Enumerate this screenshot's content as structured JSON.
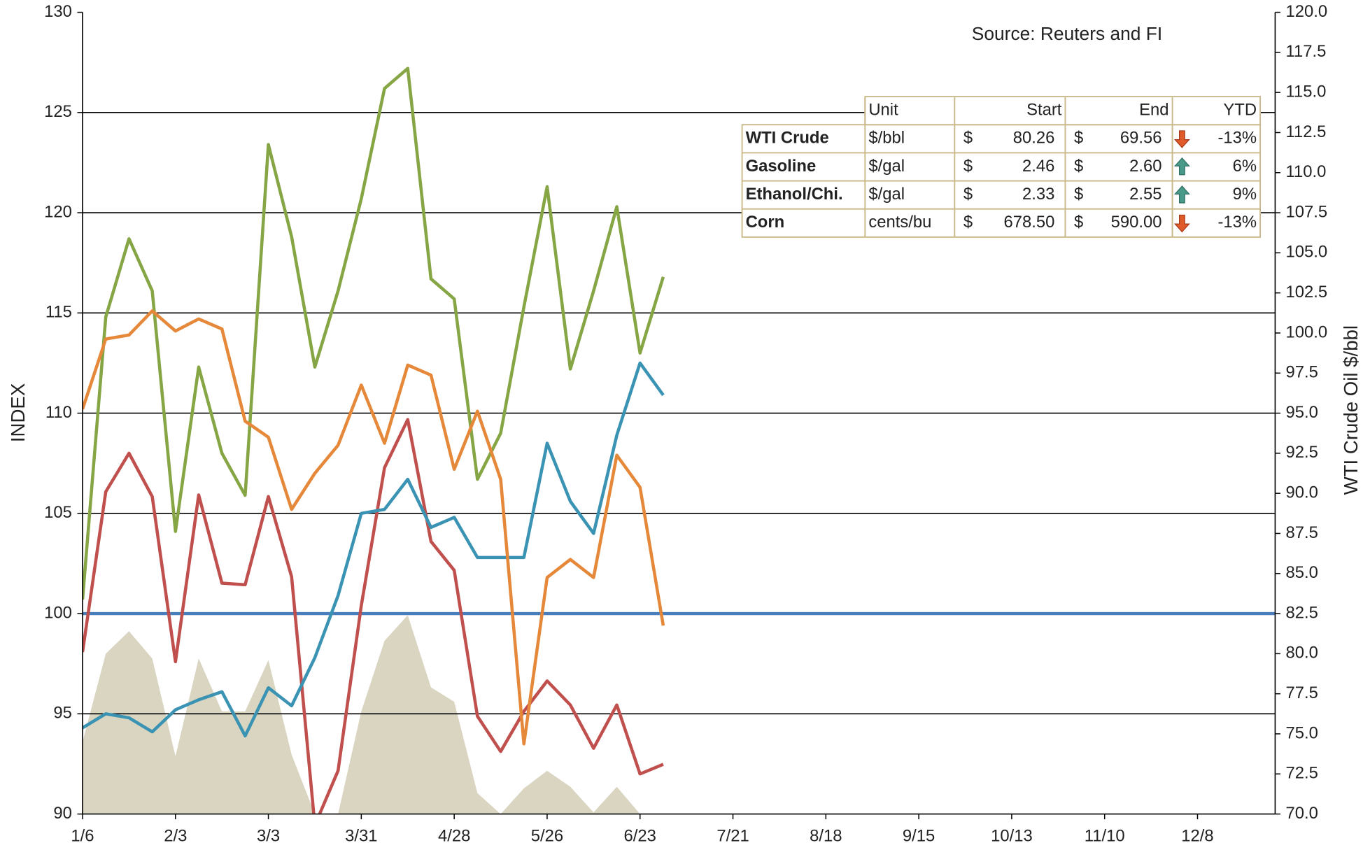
{
  "chart_data": {
    "type": "line",
    "annotation": "Source: Reuters and FI",
    "y_label": "INDEX",
    "y2_label": "WTI Crude Oil $/bbl",
    "categories": [
      "1/6",
      null,
      null,
      null,
      "2/3",
      null,
      null,
      null,
      "3/3",
      null,
      null,
      null,
      "3/31",
      null,
      null,
      null,
      "4/28",
      null,
      null,
      null,
      "5/26",
      null,
      null,
      null,
      "6/23",
      null,
      null,
      null,
      "7/21",
      null,
      null,
      null,
      "8/18",
      null,
      null,
      null,
      "9/15",
      null,
      null,
      null,
      "10/13",
      null,
      null,
      null,
      "11/10",
      null,
      null,
      null,
      "12/8",
      null,
      null,
      null
    ],
    "ylim": [
      90,
      130
    ],
    "yticks": [
      90,
      95,
      100,
      105,
      110,
      115,
      120,
      125,
      130
    ],
    "y2lim": [
      70,
      120
    ],
    "y2ticks": [
      {
        "value": 70,
        "label": "70.0"
      },
      72.5,
      {
        "value": 75,
        "label": "75.0"
      },
      77.5,
      {
        "value": 80,
        "label": "80.0"
      },
      82.5,
      {
        "value": 85,
        "label": "85.0"
      },
      87.5,
      {
        "value": 90,
        "label": "90.0"
      },
      92.5,
      {
        "value": 95,
        "label": "95.0"
      },
      97.5,
      {
        "value": 100,
        "label": "100.0"
      },
      102.5,
      {
        "value": 105,
        "label": "105.0"
      },
      107.5,
      {
        "value": 110,
        "label": "110.0"
      },
      112.5,
      {
        "value": 115,
        "label": "115.0"
      },
      117.5,
      {
        "value": 120,
        "label": "120.0"
      }
    ],
    "grid": true,
    "reference_line": {
      "value": 100,
      "color": "#4a7ebb"
    },
    "series": [
      {
        "name": "WTI Crude",
        "color": "#c0504d",
        "axis": "y2",
        "values": [
          80.1,
          90.1,
          92.5,
          89.8,
          79.5,
          89.9,
          84.4,
          84.3,
          89.8,
          84.8,
          69.3,
          72.7,
          83.0,
          91.6,
          94.6,
          87.0,
          85.2,
          76.1,
          73.9,
          76.4,
          78.3,
          76.8,
          74.1,
          76.8,
          72.5,
          73.1,
          null,
          null,
          null,
          null,
          null,
          null,
          null,
          null,
          null,
          null,
          null,
          null,
          null,
          null,
          null,
          null,
          null,
          null,
          null,
          null,
          null,
          null,
          null,
          null,
          null,
          null
        ]
      },
      {
        "name": "Gasoline",
        "color": "#86a544",
        "values": [
          100.7,
          114.8,
          118.7,
          116.1,
          104.1,
          112.3,
          108.0,
          105.9,
          123.4,
          118.8,
          112.3,
          116.1,
          120.7,
          126.2,
          127.2,
          116.7,
          115.7,
          106.7,
          109.0,
          115.3,
          121.3,
          112.2,
          116.1,
          120.3,
          113.0,
          116.8,
          null,
          null,
          null,
          null,
          null,
          null,
          null,
          null,
          null,
          null,
          null,
          null,
          null,
          null,
          null,
          null,
          null,
          null,
          null,
          null,
          null,
          null,
          null,
          null,
          null,
          null
        ]
      },
      {
        "name": "Ethanol/Chi.",
        "color": "#3b93b3",
        "values": [
          94.3,
          95.0,
          94.8,
          94.1,
          95.2,
          95.7,
          96.1,
          93.9,
          96.3,
          95.4,
          97.8,
          100.9,
          105.0,
          105.2,
          106.7,
          104.3,
          104.8,
          102.8,
          102.8,
          102.8,
          108.5,
          105.6,
          104.0,
          108.9,
          112.5,
          110.9,
          null,
          null,
          null,
          null,
          null,
          null,
          null,
          null,
          null,
          null,
          null,
          null,
          null,
          null,
          null,
          null,
          null,
          null,
          null,
          null,
          null,
          null,
          null,
          null,
          null,
          null
        ]
      },
      {
        "name": "Corn",
        "color": "#e6883a",
        "values": [
          110.2,
          113.7,
          113.9,
          115.1,
          114.1,
          114.7,
          114.2,
          109.6,
          108.8,
          105.2,
          107.0,
          108.4,
          111.4,
          108.5,
          112.4,
          111.9,
          107.2,
          110.1,
          106.7,
          93.5,
          101.8,
          102.7,
          101.8,
          107.9,
          106.3,
          99.4,
          null,
          null,
          null,
          null,
          null,
          null,
          null,
          null,
          null,
          null,
          null,
          null,
          null,
          null,
          null,
          null,
          null,
          null,
          null,
          null,
          null,
          null,
          null,
          null,
          null,
          null
        ]
      },
      {
        "color": "#d9d5c1",
        "axis": "y2",
        "style": "area",
        "values": [
          74.5,
          80.0,
          81.4,
          79.7,
          73.6,
          79.7,
          76.4,
          76.4,
          79.6,
          73.7,
          70,
          70,
          76.4,
          80.8,
          82.4,
          77.9,
          77.0,
          71.3,
          70,
          71.6,
          72.7,
          71.7,
          70.1,
          71.7,
          70,
          null,
          null,
          null,
          null,
          null,
          null,
          null,
          null,
          null,
          null,
          null,
          null,
          null,
          null,
          null,
          null,
          null,
          null,
          null,
          null,
          null,
          null,
          null,
          null,
          null,
          null,
          null
        ]
      }
    ],
    "table": {
      "currency": "$",
      "header": {
        "unit": "Unit",
        "start": "Start",
        "end": "End",
        "ytd": "YTD"
      },
      "rows": [
        {
          "unit": "$/bbl",
          "start": "80.26",
          "end": "69.56",
          "trend": "down",
          "ytd": "-13%"
        },
        {
          "unit": "$/gal",
          "start": "2.46",
          "end": "2.60",
          "trend": "up",
          "ytd": "6%"
        },
        {
          "unit": "$/gal",
          "start": "2.33",
          "end": "2.55",
          "trend": "up",
          "ytd": "9%"
        },
        {
          "unit": "cents/bu",
          "start": "678.50",
          "end": "590.00",
          "trend": "down",
          "ytd": "-13%"
        }
      ]
    }
  }
}
